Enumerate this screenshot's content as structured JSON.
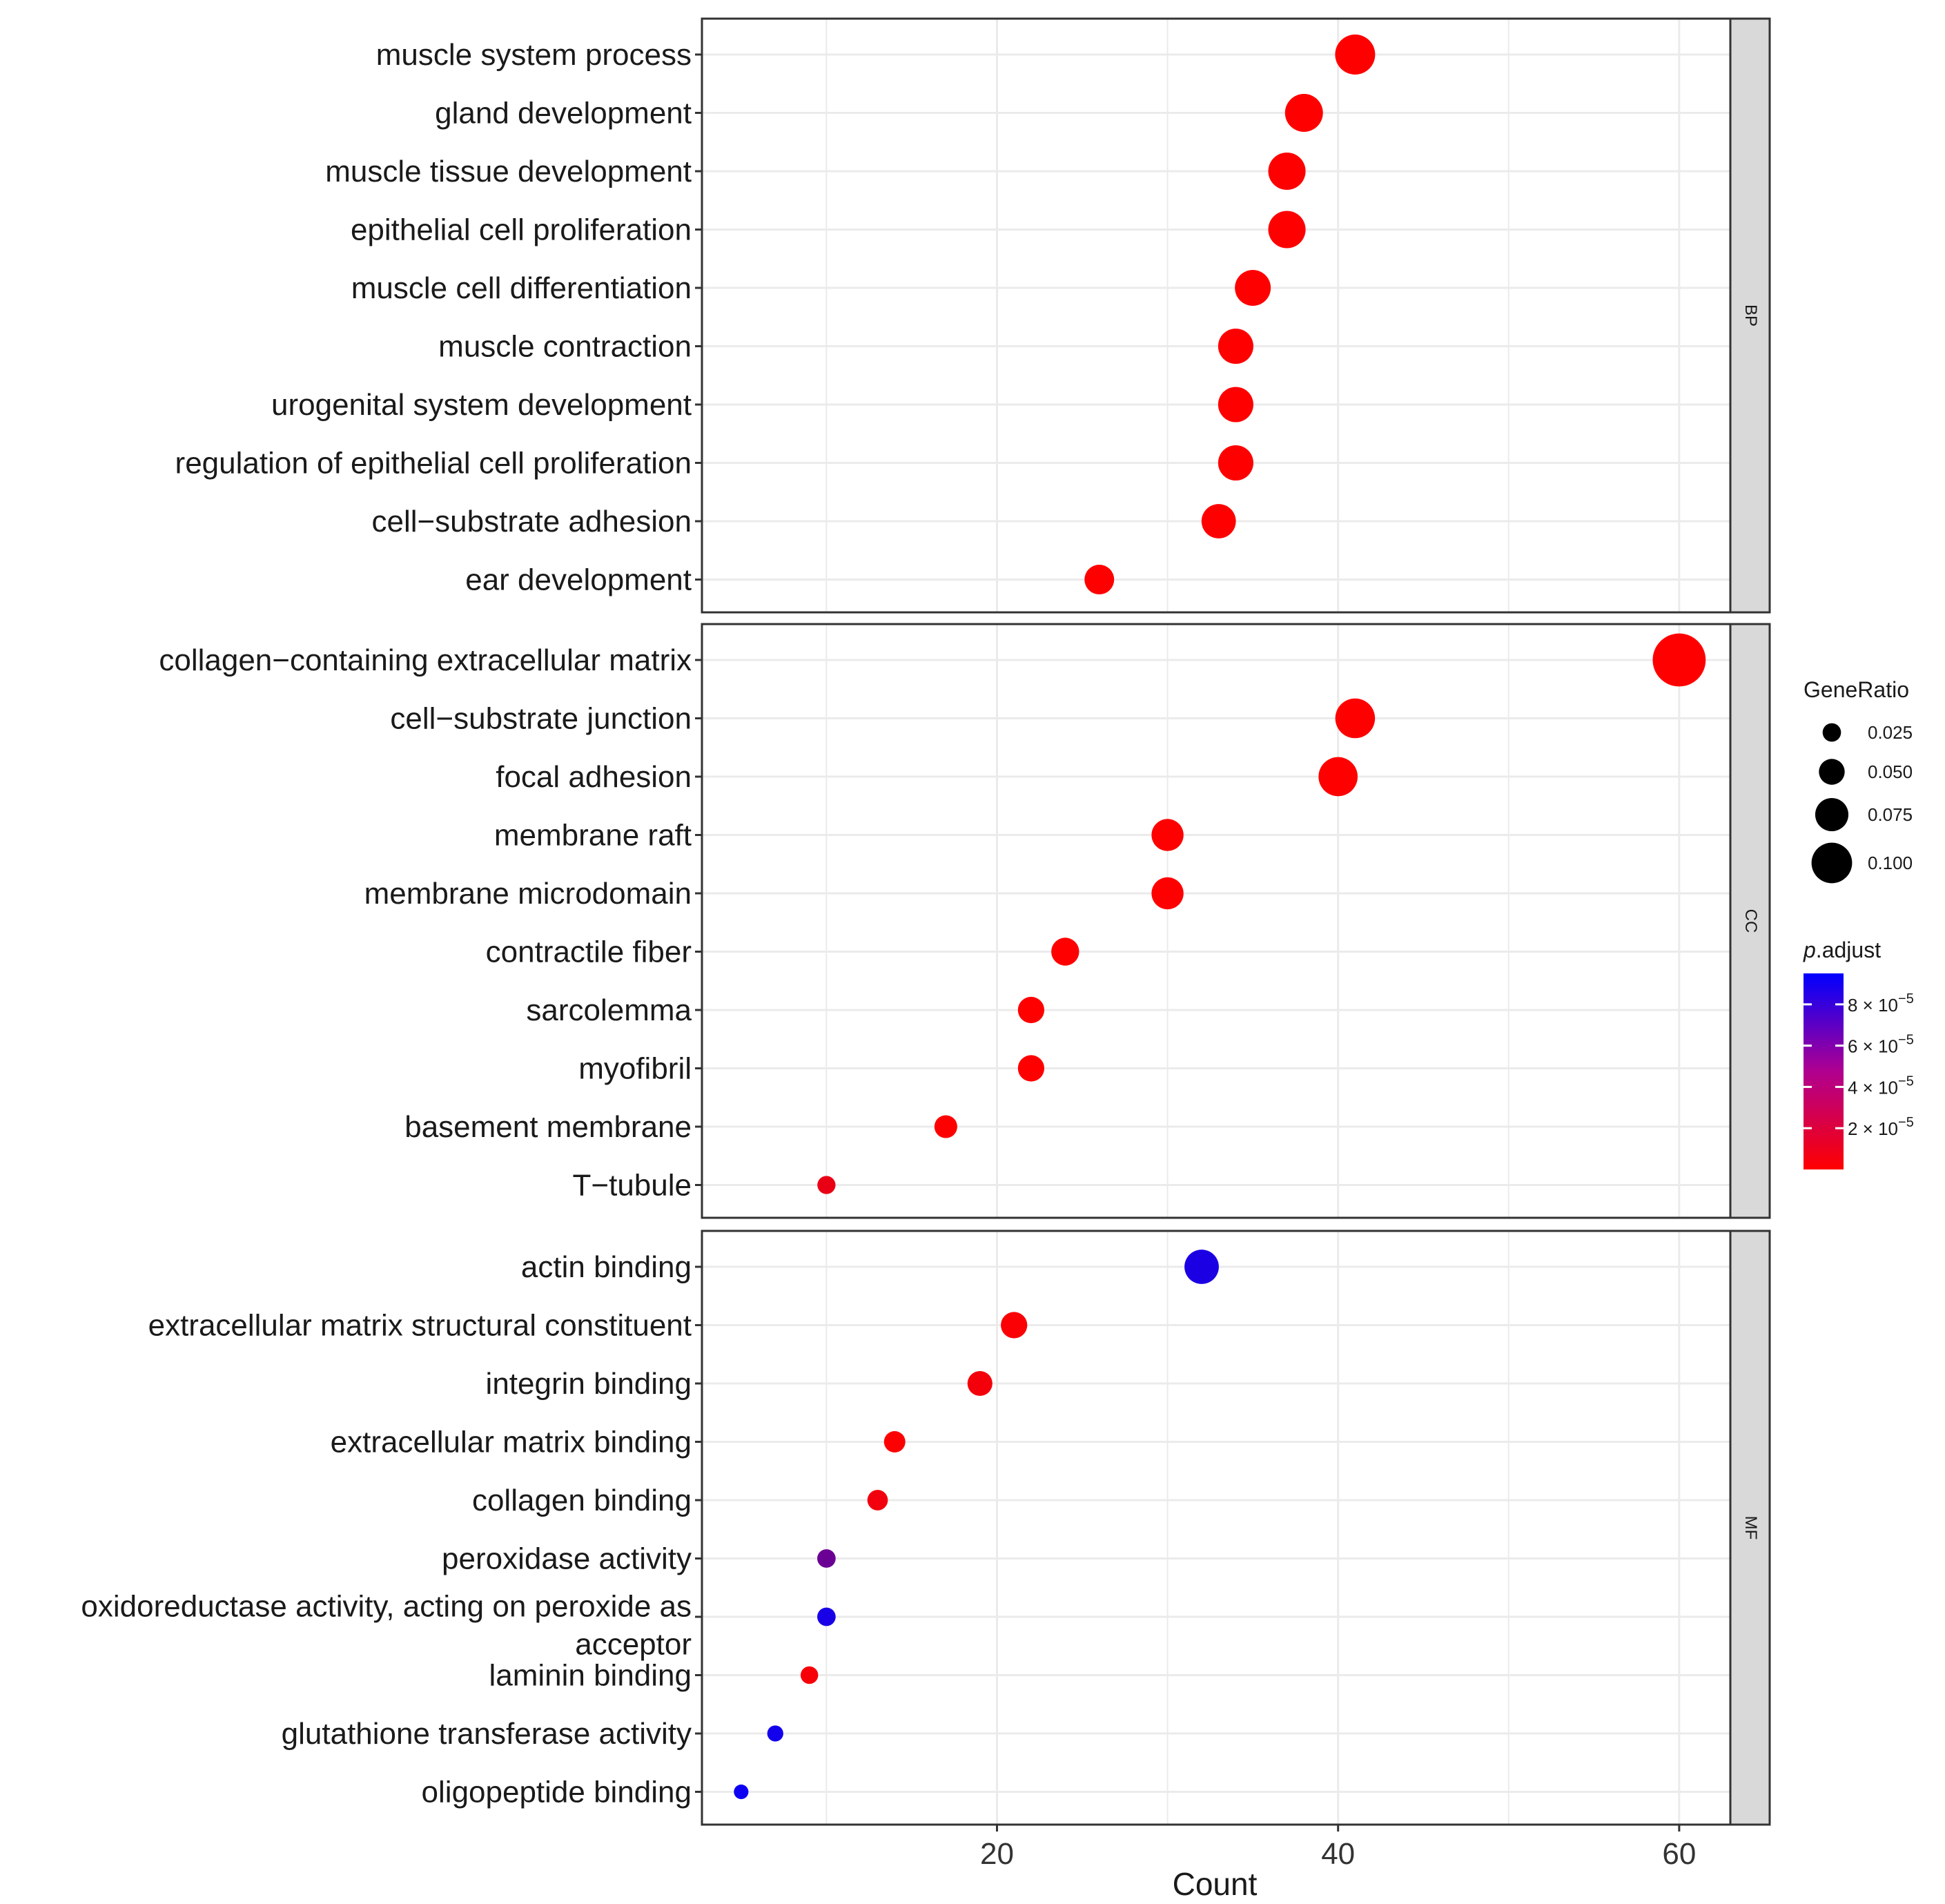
{
  "chart_data": {
    "type": "scatter",
    "subtype": "faceted-dotplot",
    "xlabel": "Count",
    "xlim": [
      2.7,
      63
    ],
    "xticks": [
      20,
      40,
      60
    ],
    "panels": [
      {
        "name": "BP",
        "terms": [
          {
            "label": "muscle system process",
            "count": 41,
            "gene_ratio": 0.098,
            "p_adjust": 5e-17
          },
          {
            "label": "gland development",
            "count": 38,
            "gene_ratio": 0.091,
            "p_adjust": 9e-15
          },
          {
            "label": "muscle tissue development",
            "count": 37,
            "gene_ratio": 0.089,
            "p_adjust": 2e-13
          },
          {
            "label": "epithelial cell proliferation",
            "count": 37,
            "gene_ratio": 0.089,
            "p_adjust": 2e-13
          },
          {
            "label": "muscle cell differentiation",
            "count": 35,
            "gene_ratio": 0.084,
            "p_adjust": 6e-13
          },
          {
            "label": "muscle contraction",
            "count": 34,
            "gene_ratio": 0.082,
            "p_adjust": 2e-12
          },
          {
            "label": "urogenital system development",
            "count": 34,
            "gene_ratio": 0.082,
            "p_adjust": 4e-12
          },
          {
            "label": "regulation of epithelial cell proliferation",
            "count": 34,
            "gene_ratio": 0.082,
            "p_adjust": 8e-12
          },
          {
            "label": "cell−substrate adhesion",
            "count": 33,
            "gene_ratio": 0.079,
            "p_adjust": 3e-11
          },
          {
            "label": "ear development",
            "count": 26,
            "gene_ratio": 0.063,
            "p_adjust": 1e-10
          }
        ]
      },
      {
        "name": "CC",
        "terms": [
          {
            "label": "collagen−containing extracellular matrix",
            "count": 60,
            "gene_ratio": 0.142,
            "p_adjust": 1e-20
          },
          {
            "label": "cell−substrate junction",
            "count": 41,
            "gene_ratio": 0.097,
            "p_adjust": 1e-15
          },
          {
            "label": "focal adhesion",
            "count": 40,
            "gene_ratio": 0.095,
            "p_adjust": 2e-15
          },
          {
            "label": "membrane raft",
            "count": 30,
            "gene_ratio": 0.071,
            "p_adjust": 1e-11
          },
          {
            "label": "membrane microdomain",
            "count": 30,
            "gene_ratio": 0.071,
            "p_adjust": 1e-11
          },
          {
            "label": "contractile fiber",
            "count": 24,
            "gene_ratio": 0.057,
            "p_adjust": 8e-09
          },
          {
            "label": "sarcolemma",
            "count": 22,
            "gene_ratio": 0.052,
            "p_adjust": 2e-10
          },
          {
            "label": "myofibril",
            "count": 22,
            "gene_ratio": 0.052,
            "p_adjust": 5e-09
          },
          {
            "label": "basement membrane",
            "count": 17,
            "gene_ratio": 0.04,
            "p_adjust": 7e-09
          },
          {
            "label": "T−tubule",
            "count": 10,
            "gene_ratio": 0.024,
            "p_adjust": 8e-06
          }
        ]
      },
      {
        "name": "MF",
        "terms": [
          {
            "label": "actin binding",
            "count": 32,
            "gene_ratio": 0.079,
            "p_adjust": 8.5e-05
          },
          {
            "label": "extracellular matrix structural constituent",
            "count": 21,
            "gene_ratio": 0.052,
            "p_adjust": 1.5e-06
          },
          {
            "label": "integrin binding",
            "count": 19,
            "gene_ratio": 0.047,
            "p_adjust": 4e-06
          },
          {
            "label": "extracellular matrix binding",
            "count": 14,
            "gene_ratio": 0.035,
            "p_adjust": 6e-07
          },
          {
            "label": "collagen binding",
            "count": 13,
            "gene_ratio": 0.032,
            "p_adjust": 5e-06
          },
          {
            "label": "peroxidase activity",
            "count": 10,
            "gene_ratio": 0.025,
            "p_adjust": 5.5e-05
          },
          {
            "label": "oxidoreductase activity, acting on peroxide as acceptor",
            "count": 10,
            "gene_ratio": 0.025,
            "p_adjust": 8.6e-05
          },
          {
            "label": "laminin binding",
            "count": 9,
            "gene_ratio": 0.022,
            "p_adjust": 3e-06
          },
          {
            "label": "glutathione transferase activity",
            "count": 7,
            "gene_ratio": 0.017,
            "p_adjust": 8.8e-05
          },
          {
            "label": "oligopeptide binding",
            "count": 5,
            "gene_ratio": 0.012,
            "p_adjust": 9e-05
          }
        ]
      }
    ],
    "legend": {
      "size": {
        "title": "GeneRatio",
        "entries": [
          {
            "label": "0.025",
            "value": 0.025
          },
          {
            "label": "0.050",
            "value": 0.05
          },
          {
            "label": "0.075",
            "value": 0.075
          },
          {
            "label": "0.100",
            "value": 0.1
          }
        ]
      },
      "color": {
        "title": "p.adjust",
        "title_plain": "p",
        "title_suffix": ".adjust",
        "low_color": "#ff0000",
        "high_color": "#0000ff",
        "range": [
          0,
          9.5e-05
        ],
        "entries": [
          {
            "mantissa": "8",
            "exp": "−5",
            "value": 8e-05
          },
          {
            "mantissa": "6",
            "exp": "−5",
            "value": 6e-05
          },
          {
            "mantissa": "4",
            "exp": "−5",
            "value": 4e-05
          },
          {
            "mantissa": "2",
            "exp": "−5",
            "value": 2e-05
          }
        ]
      }
    },
    "colors": {
      "panel_border": "#333333",
      "grid": "#ebebeb",
      "strip_fill": "#d9d9d9",
      "text": "#1a1a1a"
    }
  }
}
